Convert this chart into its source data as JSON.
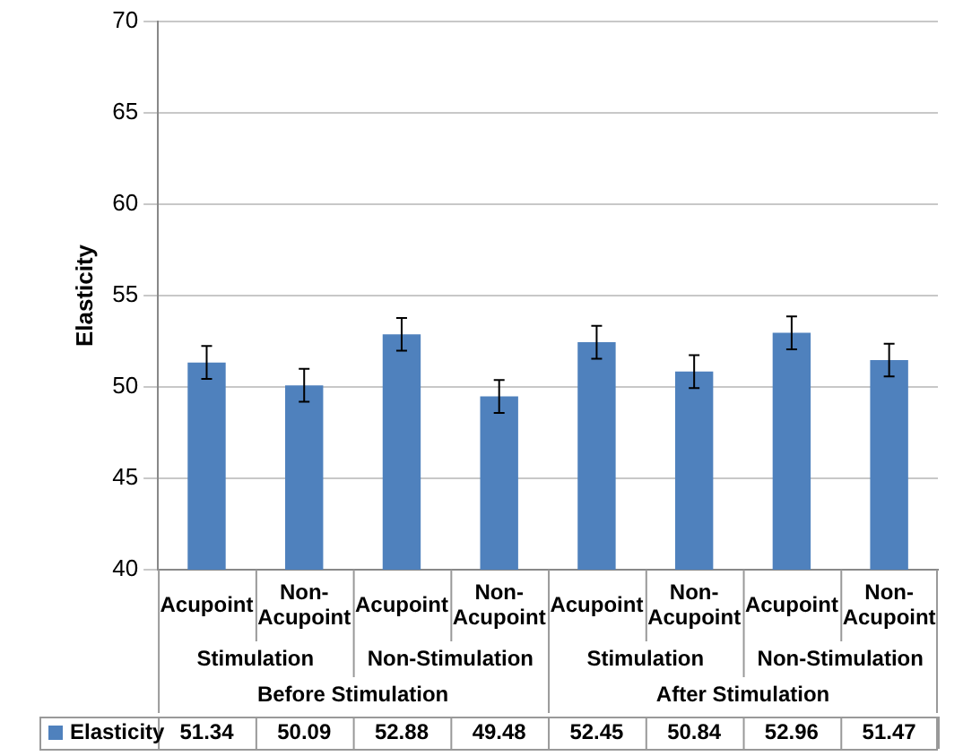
{
  "chart_data": {
    "type": "bar",
    "ylabel": "Elasticity",
    "categories": [
      "Acupoint",
      "Non-Acupoint",
      "Acupoint",
      "Non-Acupoint",
      "Acupoint",
      "Non-Acupoint",
      "Acupoint",
      "Non-Acupoint"
    ],
    "annotations": [
      "Stimulation",
      "Non-Stimulation",
      "Stimulation",
      "Non-Stimulation",
      "Before Stimulation",
      "After Stimulation"
    ],
    "series": [
      {
        "name": "Elasticity",
        "color": "#4f81bd",
        "values": [
          51.34,
          50.09,
          52.88,
          49.48,
          52.45,
          50.84,
          52.96,
          51.47
        ],
        "errors": [
          0.9,
          0.9,
          0.9,
          0.9,
          0.9,
          0.9,
          0.9,
          0.9
        ]
      }
    ],
    "ylim": [
      40,
      70
    ],
    "yticks": [
      40,
      45,
      50,
      55,
      60,
      65,
      70
    ],
    "grid": "y",
    "legend": "bottom",
    "data_labels": true
  }
}
